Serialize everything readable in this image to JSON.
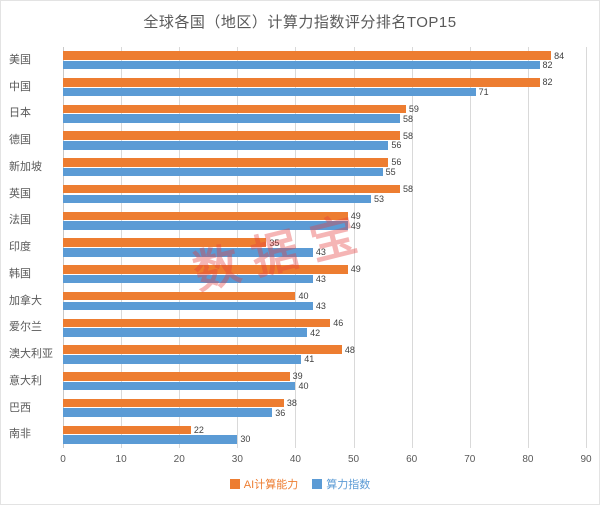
{
  "title": "全球各国（地区）计算力指数评分排名TOP15",
  "watermark": "数据宝",
  "colors": {
    "ai_series": "#ED7D31",
    "index_series": "#5B9BD5",
    "gridline": "#D9D9D9",
    "title_text": "#595959",
    "value_label_text": "#404040",
    "watermark_red": "#E63C3C"
  },
  "legend": [
    {
      "label": "AI计算能力",
      "color": "#ED7D31"
    },
    {
      "label": "算力指数",
      "color": "#5B9BD5"
    }
  ],
  "chart_data": {
    "type": "bar",
    "orientation": "horizontal",
    "title": "全球各国（地区）计算力指数评分排名TOP15",
    "categories": [
      "美国",
      "中国",
      "日本",
      "德国",
      "新加坡",
      "英国",
      "法国",
      "印度",
      "韩国",
      "加拿大",
      "爱尔兰",
      "澳大利亚",
      "意大利",
      "巴西",
      "南非"
    ],
    "series": [
      {
        "name": "AI计算能力",
        "color": "#ED7D31",
        "values": [
          84,
          82,
          59,
          58,
          56,
          58,
          49,
          35,
          49,
          40,
          46,
          48,
          39,
          38,
          22
        ]
      },
      {
        "name": "算力指数",
        "color": "#5B9BD5",
        "values": [
          82,
          71,
          58,
          56,
          55,
          53,
          49,
          43,
          43,
          43,
          42,
          41,
          40,
          36,
          30
        ]
      }
    ],
    "xlabel": "",
    "ylabel": "",
    "xlim": [
      0,
      90
    ],
    "xticks": [
      0,
      10,
      20,
      30,
      40,
      50,
      60,
      70,
      80,
      90
    ],
    "grid": "vertical",
    "legend_position": "bottom",
    "data_labels": true
  }
}
